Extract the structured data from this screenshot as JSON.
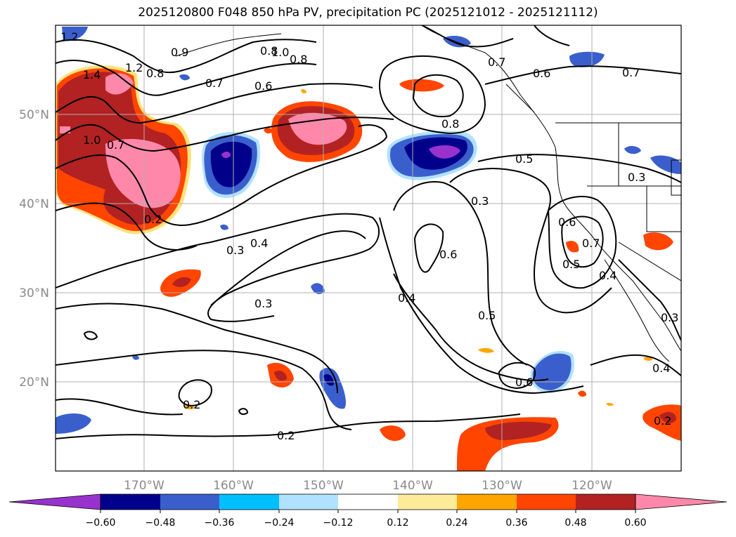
{
  "title": "2025120800 F048 850 hPa PV, precipitation PC (2025121012 - 2025121112)",
  "map": {
    "latitude_labels": [
      "50°N",
      "40°N",
      "30°N",
      "20°N"
    ],
    "longitude_labels": [
      "170°W",
      "160°W",
      "150°W",
      "140°W",
      "130°W",
      "120°W"
    ],
    "contour_labels": [
      "1.2",
      "0.9",
      "1.4",
      "1.2",
      "0.8",
      "1.0",
      "0.8",
      "0.7",
      "0.6",
      "0.7",
      "0.8",
      "0.6",
      "0.7",
      "1.0",
      "0.7",
      "0.8",
      "0.5",
      "0.3",
      "0.2",
      "0.3",
      "0.4",
      "0.3",
      "0.6",
      "0.3",
      "0.4",
      "0.5",
      "0.6",
      "0.6",
      "0.7",
      "0.5",
      "0.4",
      "0.3",
      "0.4",
      "0.2",
      "0.2",
      "0.2"
    ]
  },
  "colorbar": {
    "ticks": [
      "−0.60",
      "−0.48",
      "−0.36",
      "−0.24",
      "−0.12",
      "0.12",
      "0.24",
      "0.36",
      "0.48",
      "0.60"
    ],
    "colors": [
      "#9932cc",
      "#00008b",
      "#3a5fcd",
      "#00bfff",
      "#b0e2ff",
      "#ffffff",
      "#fdeb9a",
      "#ffa500",
      "#ff4500",
      "#b22222",
      "#ff88aa"
    ]
  }
}
